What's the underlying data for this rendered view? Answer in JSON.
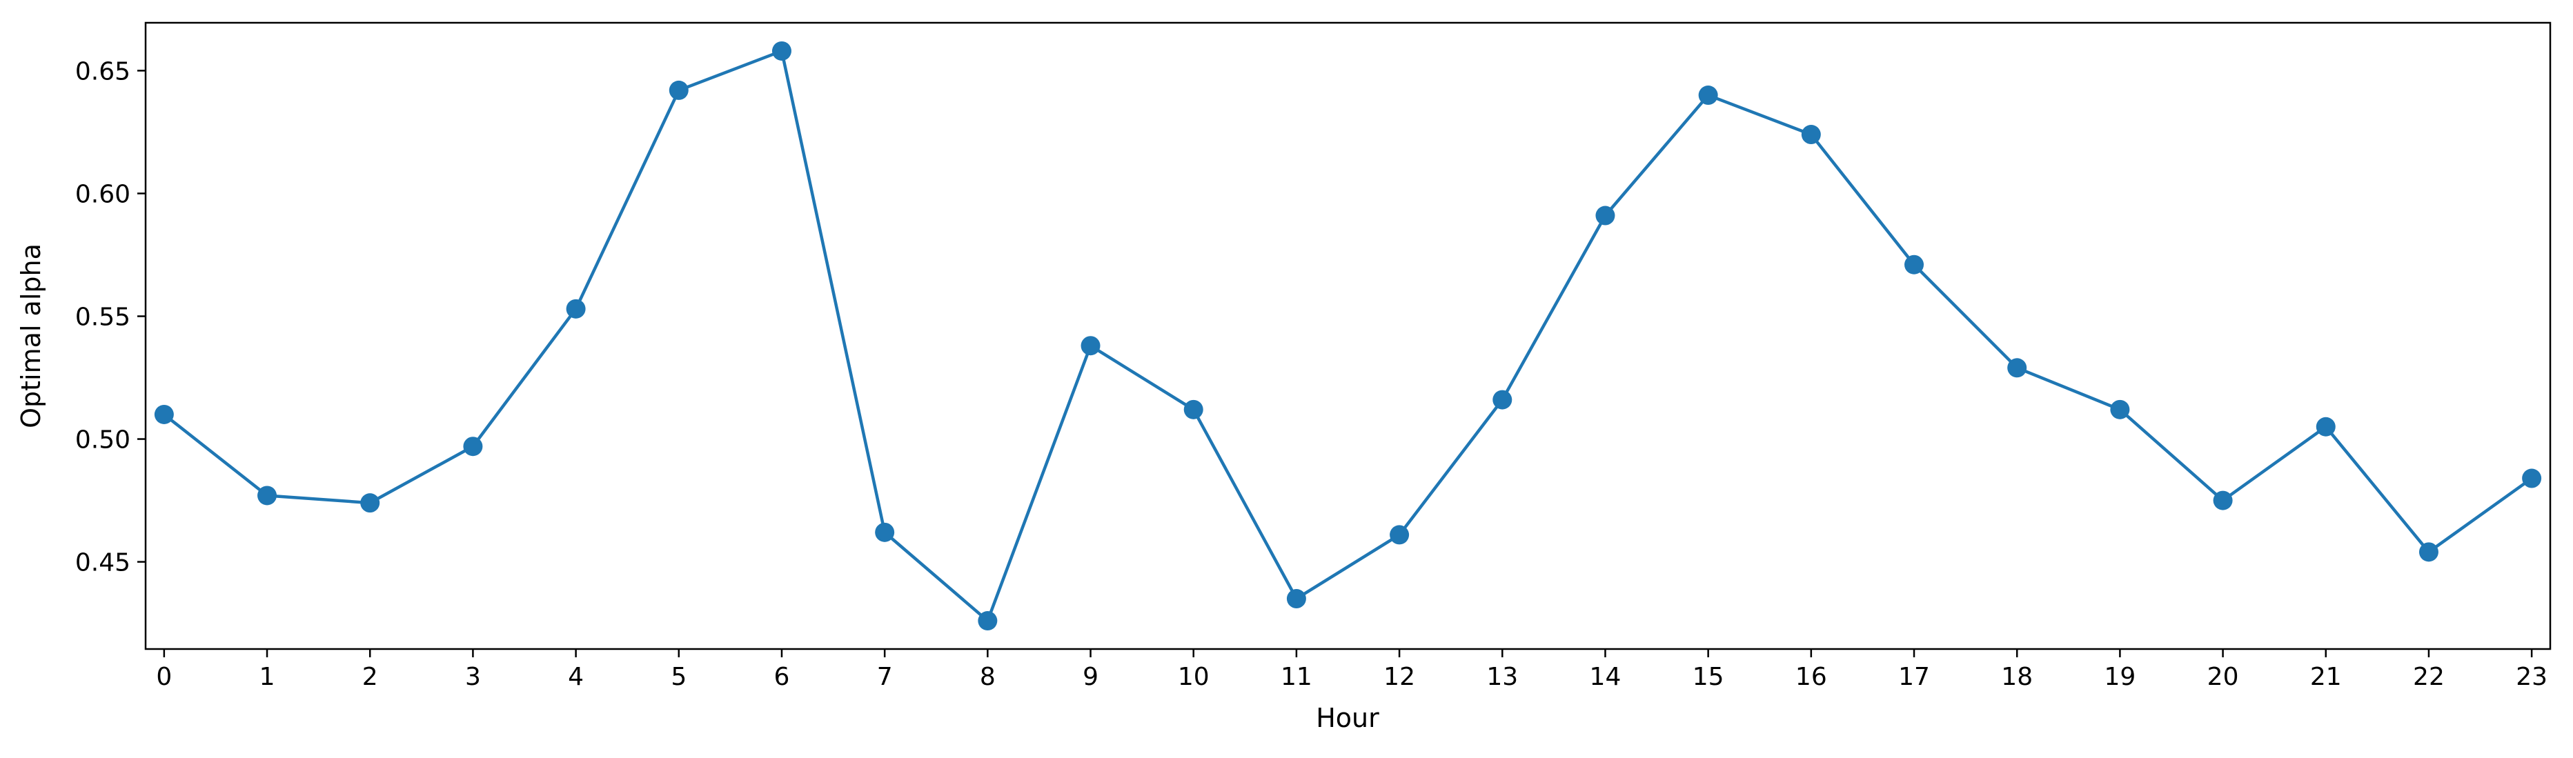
{
  "chart_data": {
    "type": "line",
    "title": "",
    "xlabel": "Hour",
    "ylabel": "Optimal alpha",
    "x": [
      0,
      1,
      2,
      3,
      4,
      5,
      6,
      7,
      8,
      9,
      10,
      11,
      12,
      13,
      14,
      15,
      16,
      17,
      18,
      19,
      20,
      21,
      22,
      23
    ],
    "y": [
      0.51,
      0.477,
      0.474,
      0.497,
      0.553,
      0.642,
      0.658,
      0.462,
      0.426,
      0.538,
      0.512,
      0.435,
      0.461,
      0.516,
      0.591,
      0.64,
      0.624,
      0.571,
      0.529,
      0.512,
      0.475,
      0.505,
      0.454,
      0.484
    ],
    "xticks": [
      "0",
      "1",
      "2",
      "3",
      "4",
      "5",
      "6",
      "7",
      "8",
      "9",
      "10",
      "11",
      "12",
      "13",
      "14",
      "15",
      "16",
      "17",
      "18",
      "19",
      "20",
      "21",
      "22",
      "23"
    ],
    "yticks": [
      "0.45",
      "0.50",
      "0.55",
      "0.60",
      "0.65"
    ],
    "xlim": [
      -0.18,
      23.18
    ],
    "ylim": [
      0.4145,
      0.6695
    ],
    "grid": false,
    "marker": "circle",
    "color": "#1f77b4"
  }
}
